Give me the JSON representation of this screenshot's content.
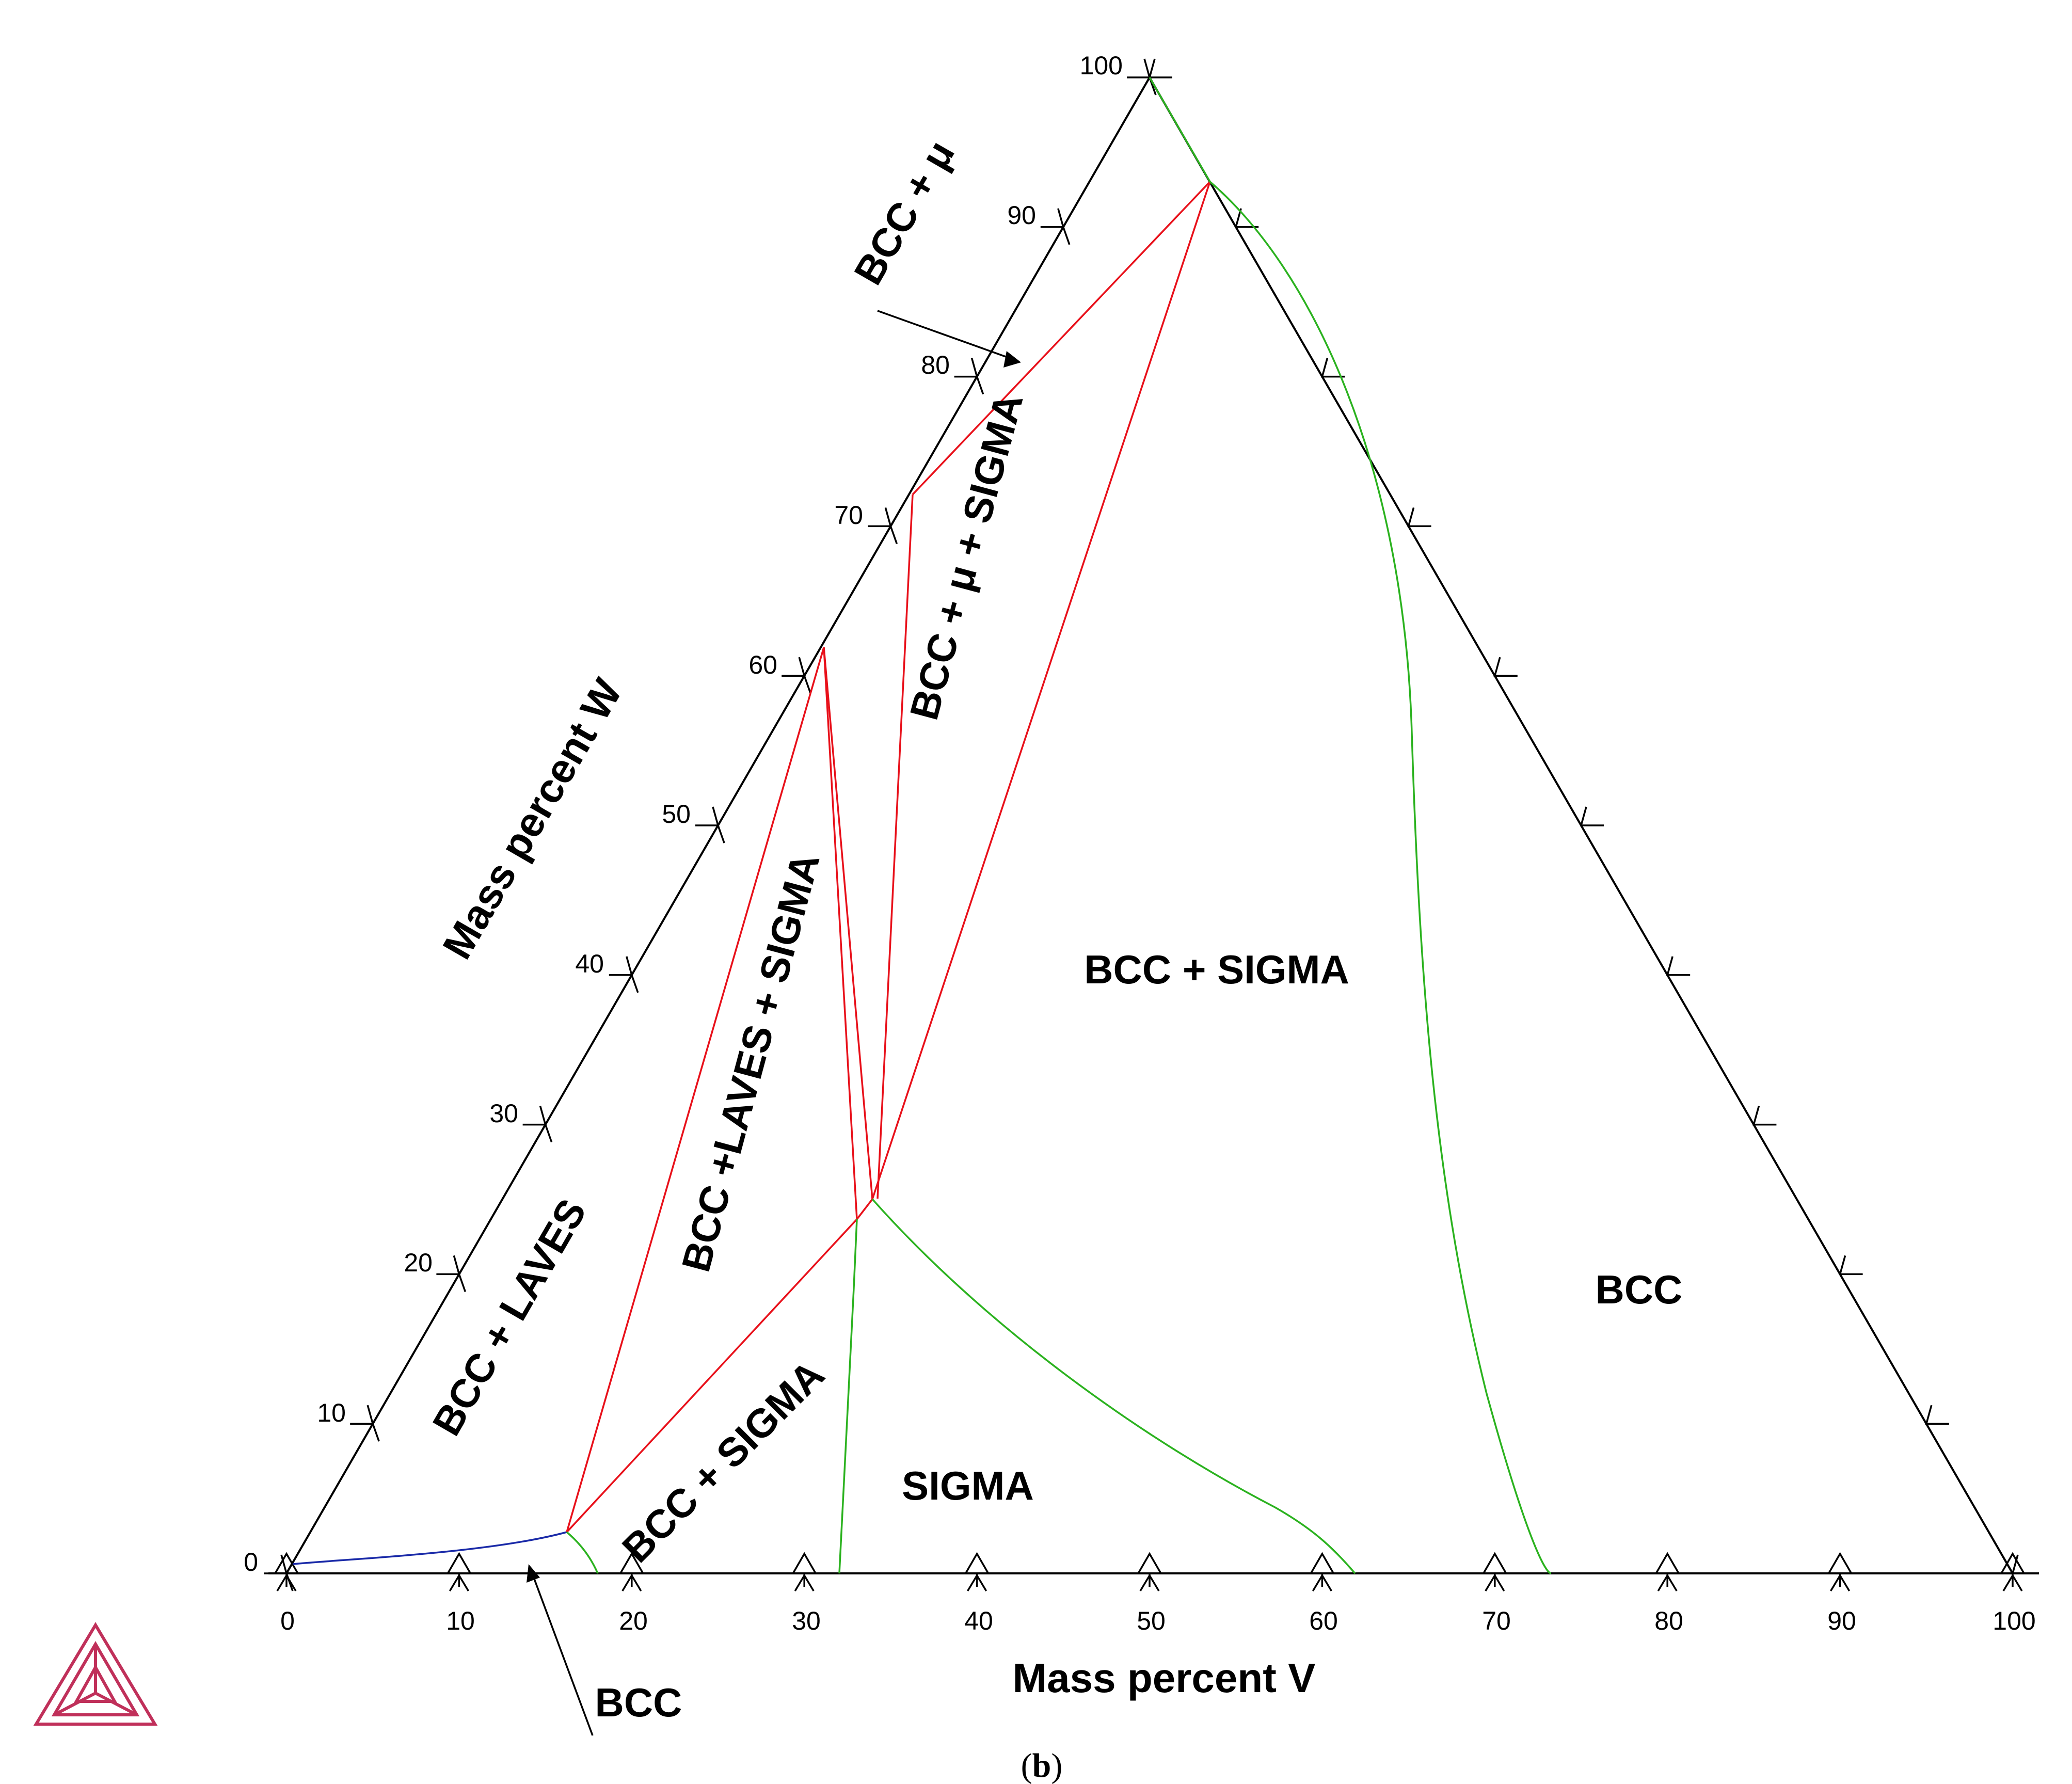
{
  "diagram": {
    "bottom_axis_title": "Mass percent V",
    "left_axis_title": "Mass percent W",
    "bottom_ticks": [
      "0",
      "10",
      "20",
      "30",
      "40",
      "50",
      "60",
      "70",
      "80",
      "90",
      "100"
    ],
    "left_ticks": [
      "0",
      "10",
      "20",
      "30",
      "40",
      "50",
      "60",
      "70",
      "80",
      "90",
      "100"
    ],
    "region_labels": {
      "bcc_mu": "BCC + μ",
      "bcc_mu_sigma": "BCC + μ + SIGMA",
      "bcc_laves_sigma": "BCC +LAVES + SIGMA",
      "bcc_laves": "BCC + LAVES",
      "bcc_sigma_large": "BCC + SIGMA",
      "bcc_sigma_small": "BCC + SIGMA",
      "sigma": "SIGMA",
      "bcc_right": "BCC",
      "bcc_bottom": "BCC"
    },
    "subfigure_open": "(",
    "subfigure_letter": "b",
    "subfigure_close": ")",
    "logo_icon": "thermo-calc-logo-icon",
    "colors": {
      "tie_lines": "#e8101a",
      "phase_boundaries": "#2bb21f",
      "bcc_boundary": "#1a2aa8",
      "axes": "#000000",
      "logo": "#c0305a"
    }
  }
}
